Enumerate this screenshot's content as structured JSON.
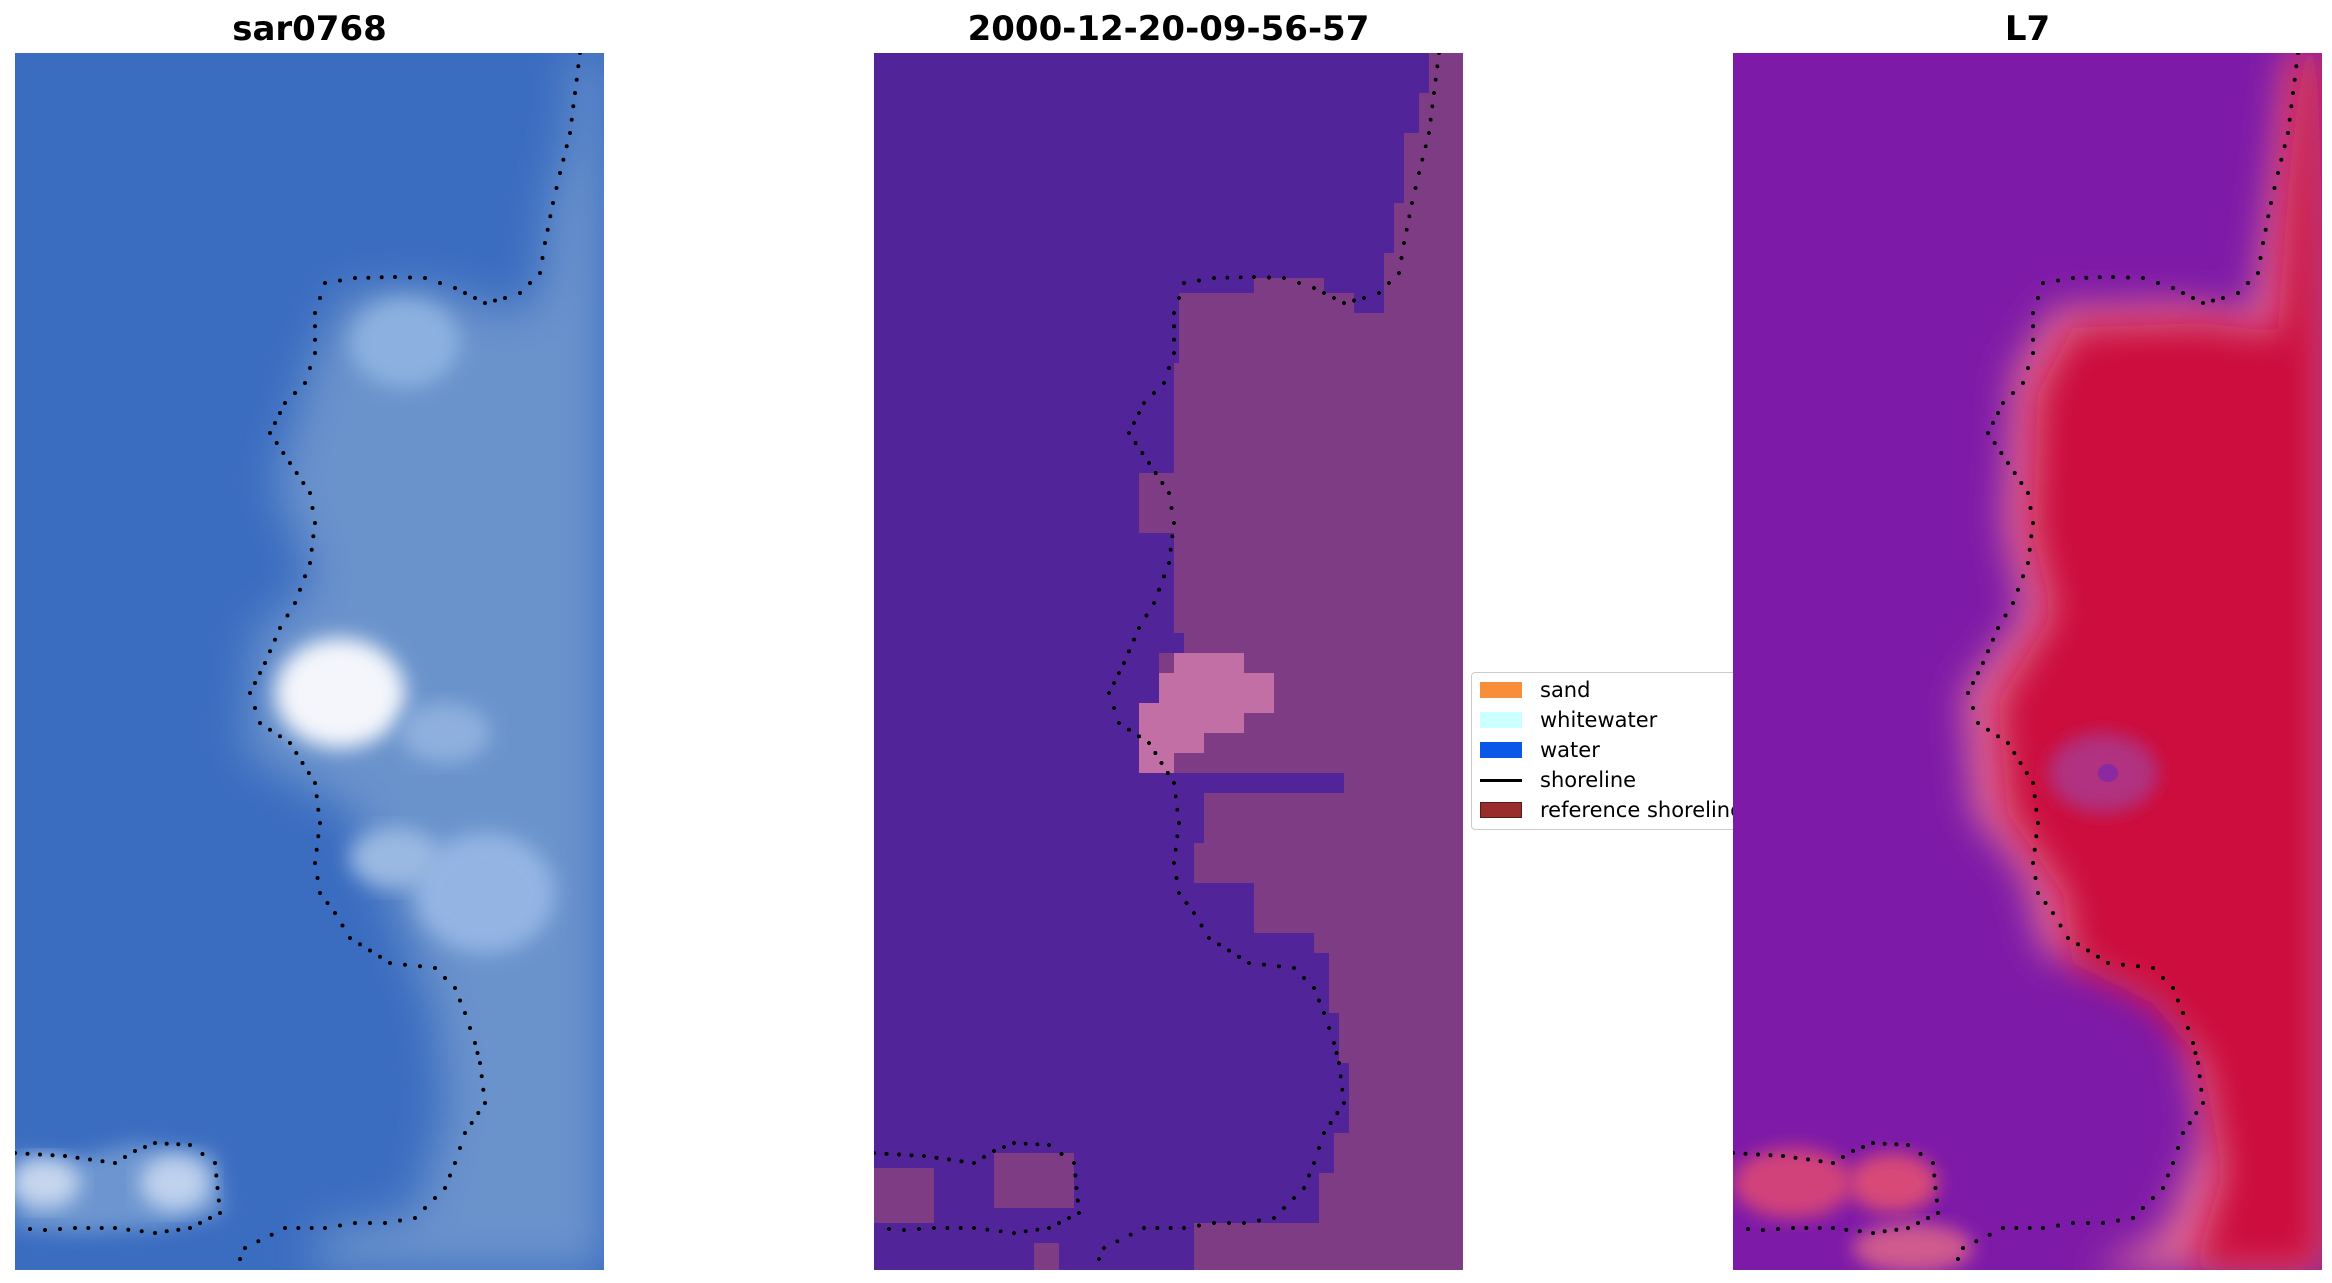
{
  "panels": {
    "left": {
      "title": "sar0768"
    },
    "middle": {
      "title": "2000-12-20-09-56-57"
    },
    "right": {
      "title": "L7"
    }
  },
  "legend": {
    "items": [
      {
        "label": "sand",
        "kind": "patch",
        "color": "#f98e3a"
      },
      {
        "label": "whitewater",
        "kind": "patch",
        "color": "#ccffff"
      },
      {
        "label": "water",
        "kind": "patch",
        "color": "#0a57e8"
      },
      {
        "label": "shoreline",
        "kind": "line",
        "color": "#000000"
      },
      {
        "label": "reference shoreline",
        "kind": "patch",
        "color": "#9b2c2c"
      }
    ]
  },
  "colors": {
    "rgb_water": "#3a6cc0",
    "rgb_land": "#6b93cc",
    "rgb_whitewater": "#f4f6fb",
    "class_water": "#52249a",
    "class_land": "#7e3c84",
    "class_light": "#c26fa6",
    "index_water": "#7e1aa8",
    "index_land": "#cc0f3e",
    "index_light": "#dc6a96",
    "shoreline": "#000000"
  }
}
